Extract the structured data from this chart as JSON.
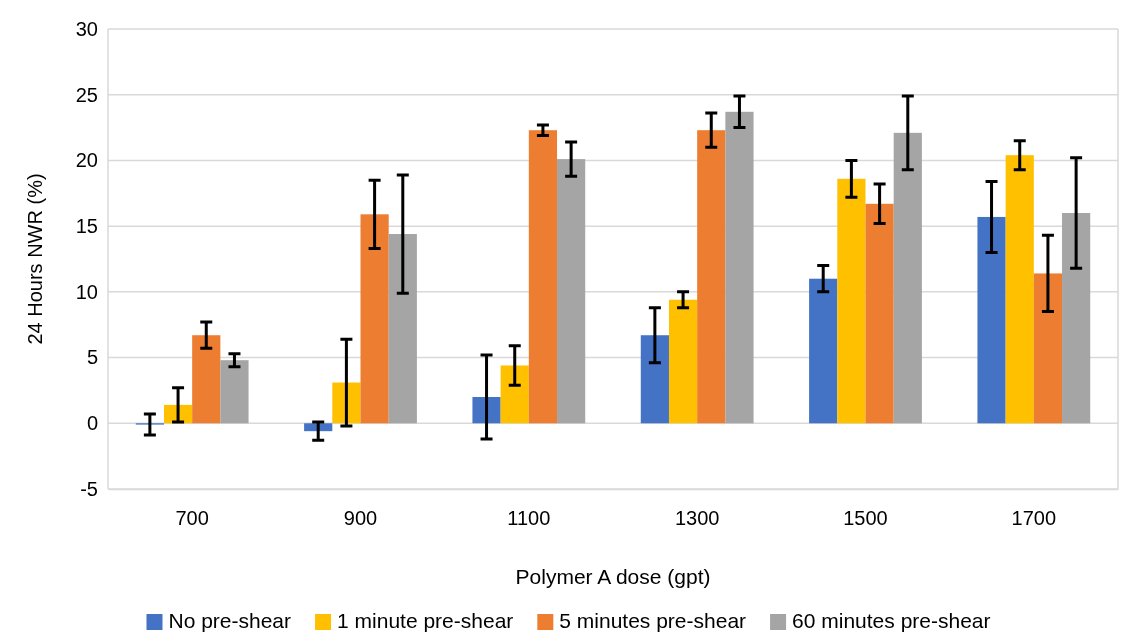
{
  "chart_data": {
    "type": "bar",
    "xlabel": "Polymer A dose (gpt)",
    "ylabel": "24 Hours NWR (%)",
    "categories": [
      "700",
      "900",
      "1100",
      "1300",
      "1500",
      "1700"
    ],
    "series": [
      {
        "name": "No pre-shear",
        "color": "#4472c4",
        "values": [
          -0.1,
          -0.6,
          2.0,
          6.7,
          11.0,
          15.7
        ],
        "errors": [
          0.8,
          0.7,
          3.2,
          2.1,
          1.0,
          2.7
        ]
      },
      {
        "name": "1 minute pre-shear",
        "color": "#ffc000",
        "values": [
          1.4,
          3.1,
          4.4,
          9.4,
          18.6,
          20.4
        ],
        "errors": [
          1.3,
          3.3,
          1.5,
          0.6,
          1.4,
          1.1
        ]
      },
      {
        "name": "5 minutes pre-shear",
        "color": "#ed7d31",
        "values": [
          6.7,
          15.9,
          22.3,
          22.3,
          16.7,
          11.4
        ],
        "errors": [
          1.0,
          2.6,
          0.4,
          1.3,
          1.5,
          2.9
        ]
      },
      {
        "name": "60 minutes pre-shear",
        "color": "#a5a5a5",
        "values": [
          4.8,
          14.4,
          20.1,
          23.7,
          22.1,
          16.0
        ],
        "errors": [
          0.5,
          4.5,
          1.3,
          1.2,
          2.8,
          4.2
        ]
      }
    ],
    "ylim": [
      -5,
      30
    ],
    "yticks": [
      -5,
      0,
      5,
      10,
      15,
      20,
      25,
      30
    ],
    "grid": "y",
    "legend": "bottom"
  }
}
